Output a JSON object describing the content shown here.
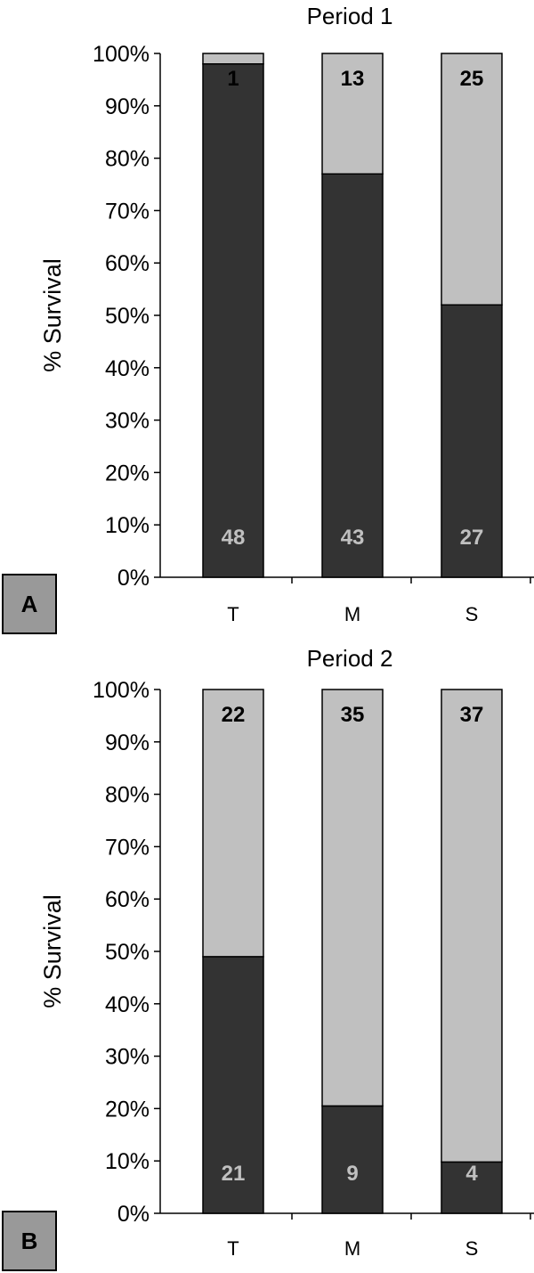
{
  "chart_data": [
    {
      "type": "bar",
      "stacked": true,
      "panel_label": "A",
      "title": "Period 1",
      "ylabel": "% Survival",
      "xlabel": "",
      "ylim": [
        0,
        100
      ],
      "yticks": [
        "0%",
        "10%",
        "20%",
        "30%",
        "40%",
        "50%",
        "60%",
        "70%",
        "80%",
        "90%",
        "100%"
      ],
      "categories": [
        "T",
        "M",
        "S"
      ],
      "series": [
        {
          "values": [
            98,
            77,
            52
          ],
          "labels": [
            "48",
            "43",
            "27"
          ],
          "color": "#333333"
        },
        {
          "values": [
            2,
            23,
            48
          ],
          "labels": [
            "1",
            "13",
            "25"
          ],
          "color": "#c0c0c0"
        }
      ],
      "grid": false
    },
    {
      "type": "bar",
      "stacked": true,
      "panel_label": "B",
      "title": "Period 2",
      "ylabel": "% Survival",
      "xlabel": "",
      "ylim": [
        0,
        100
      ],
      "yticks": [
        "0%",
        "10%",
        "20%",
        "30%",
        "40%",
        "50%",
        "60%",
        "70%",
        "80%",
        "90%",
        "100%"
      ],
      "categories": [
        "T",
        "M",
        "S"
      ],
      "series": [
        {
          "values": [
            49,
            20.5,
            9.8
          ],
          "labels": [
            "21",
            "9",
            "4"
          ],
          "color": "#333333"
        },
        {
          "values": [
            51,
            79.5,
            90.2
          ],
          "labels": [
            "22",
            "35",
            "37"
          ],
          "color": "#c0c0c0"
        }
      ],
      "grid": false
    }
  ]
}
